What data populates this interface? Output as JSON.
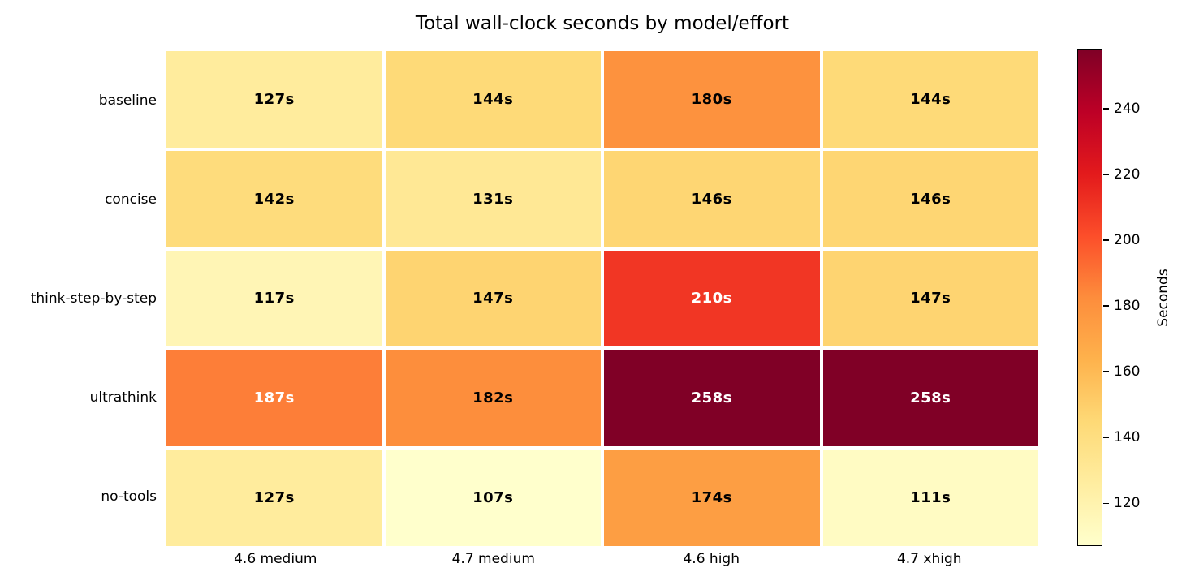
{
  "chart_data": {
    "type": "heatmap",
    "title": "Total wall-clock seconds by model/effort",
    "rows": [
      "baseline",
      "concise",
      "think-step-by-step",
      "ultrathink",
      "no-tools"
    ],
    "columns": [
      "4.6 medium",
      "4.7 medium",
      "4.6 high",
      "4.7 xhigh"
    ],
    "values": [
      [
        127,
        144,
        180,
        144
      ],
      [
        142,
        131,
        146,
        146
      ],
      [
        117,
        147,
        210,
        147
      ],
      [
        187,
        182,
        258,
        258
      ],
      [
        127,
        107,
        174,
        111
      ]
    ],
    "cell_label_suffix": "s",
    "vmin": 107,
    "vmax": 258,
    "colorbar": {
      "label": "Seconds",
      "ticks": [
        120,
        140,
        160,
        180,
        200,
        220,
        240
      ]
    },
    "colormap": {
      "name": "YlOrRd",
      "stops": [
        "#ffffcc",
        "#ffeda0",
        "#fed976",
        "#feb24c",
        "#fd8d3c",
        "#fc4e2a",
        "#e31a1c",
        "#bd0026",
        "#800026"
      ]
    },
    "cell_text_colors": {
      "dark": "#000000",
      "light": "#ffffff"
    },
    "background": "#ffffff",
    "grid_line_color": "#ffffff",
    "legend_position": "right-colorbar",
    "grid": "off"
  }
}
